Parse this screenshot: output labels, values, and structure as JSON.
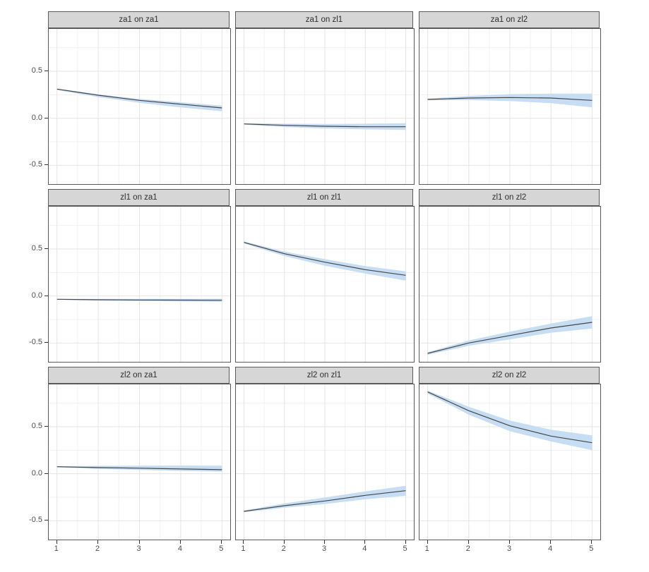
{
  "colors": {
    "background": "#ffffff",
    "strip_bg": "#d6d6d6",
    "strip_border": "#5a5a5a",
    "panel_border": "#5a5a5a",
    "grid_major": "#e4e4e4",
    "grid_minor": "#f1f1f1",
    "ribbon": "#c6ddf3",
    "line": "#474747",
    "tick_label": "#4c4c4c"
  },
  "chart_data": {
    "type": "line",
    "description": "3x3 faceted impulse-response style plots, each a line with light-blue confidence ribbon",
    "grid": "on",
    "legend": "none",
    "x": [
      1,
      2,
      3,
      4,
      5
    ],
    "x_ticks": [
      1,
      2,
      3,
      4,
      5
    ],
    "x_tick_labels": [
      "1",
      "2",
      "3",
      "4",
      "5"
    ],
    "x_minor": [
      1.5,
      2.5,
      3.5,
      4.5
    ],
    "y_ticks": [
      0.5,
      0.0,
      -0.5
    ],
    "y_tick_labels": [
      "0.5",
      "0.0",
      "-0.5"
    ],
    "y_minor": [
      0.75,
      0.25,
      -0.25
    ],
    "xlim": [
      0.8,
      5.2
    ],
    "ylim": [
      -0.7,
      0.95
    ],
    "facets": [
      {
        "title": "za1 on za1",
        "y": [
          0.31,
          0.245,
          0.19,
          0.15,
          0.11
        ],
        "lower": [
          0.3,
          0.225,
          0.165,
          0.115,
          0.075
        ],
        "upper": [
          0.315,
          0.255,
          0.205,
          0.17,
          0.135
        ]
      },
      {
        "title": "za1 on zl1",
        "y": [
          -0.06,
          -0.075,
          -0.085,
          -0.09,
          -0.09
        ],
        "lower": [
          -0.067,
          -0.093,
          -0.108,
          -0.118,
          -0.125
        ],
        "upper": [
          -0.053,
          -0.058,
          -0.06,
          -0.058,
          -0.053
        ]
      },
      {
        "title": "za1 on zl2",
        "y": [
          0.2,
          0.215,
          0.22,
          0.215,
          0.19
        ],
        "lower": [
          0.19,
          0.193,
          0.183,
          0.16,
          0.115
        ],
        "upper": [
          0.21,
          0.237,
          0.256,
          0.262,
          0.262
        ]
      },
      {
        "title": "zl1 on za1",
        "y": [
          -0.035,
          -0.04,
          -0.042,
          -0.044,
          -0.045
        ],
        "lower": [
          -0.04,
          -0.049,
          -0.054,
          -0.058,
          -0.062
        ],
        "upper": [
          -0.03,
          -0.032,
          -0.031,
          -0.031,
          -0.029
        ]
      },
      {
        "title": "zl1 on zl1",
        "y": [
          0.57,
          0.45,
          0.36,
          0.28,
          0.22
        ],
        "lower": [
          0.558,
          0.425,
          0.322,
          0.238,
          0.163
        ],
        "upper": [
          0.58,
          0.472,
          0.392,
          0.318,
          0.262
        ]
      },
      {
        "title": "zl1 on zl2",
        "y": [
          -0.61,
          -0.5,
          -0.42,
          -0.34,
          -0.28
        ],
        "lower": [
          -0.625,
          -0.53,
          -0.462,
          -0.39,
          -0.345
        ],
        "upper": [
          -0.598,
          -0.473,
          -0.38,
          -0.293,
          -0.215
        ]
      },
      {
        "title": "zl2 on za1",
        "y": [
          0.075,
          0.066,
          0.059,
          0.051,
          0.043
        ],
        "lower": [
          0.068,
          0.05,
          0.04,
          0.029,
          0.022
        ],
        "upper": [
          0.08,
          0.084,
          0.086,
          0.087,
          0.086
        ]
      },
      {
        "title": "zl2 on zl1",
        "y": [
          -0.4,
          -0.34,
          -0.29,
          -0.23,
          -0.18
        ],
        "lower": [
          -0.41,
          -0.362,
          -0.322,
          -0.272,
          -0.235
        ],
        "upper": [
          -0.39,
          -0.315,
          -0.253,
          -0.188,
          -0.128
        ]
      },
      {
        "title": "zl2 on zl2",
        "y": [
          0.87,
          0.67,
          0.51,
          0.4,
          0.33
        ],
        "lower": [
          0.852,
          0.628,
          0.452,
          0.343,
          0.25
        ],
        "upper": [
          0.885,
          0.712,
          0.565,
          0.468,
          0.408
        ]
      }
    ]
  }
}
